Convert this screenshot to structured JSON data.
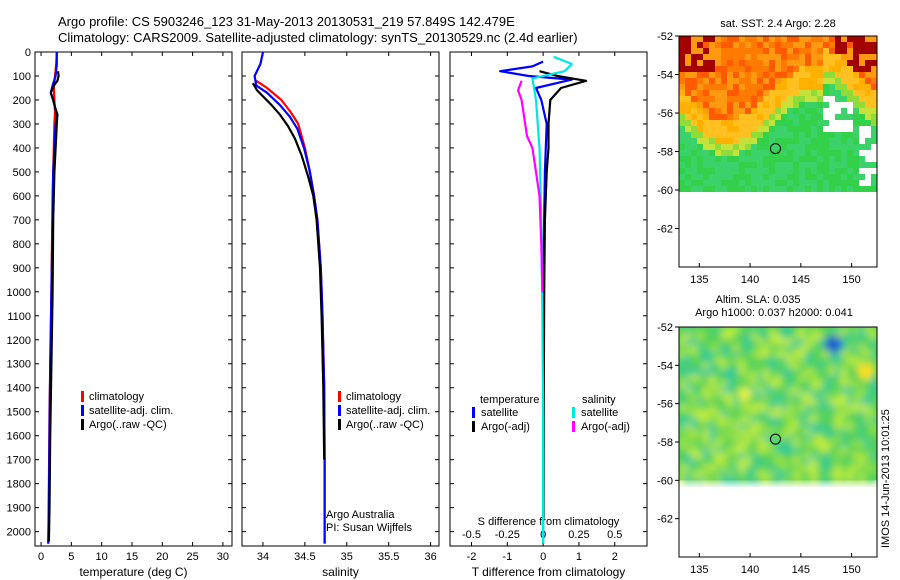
{
  "header": {
    "line1": "Argo profile: CS 5903246_123 31-May-2013 20130531_219 57.849S 142.479E",
    "line2": "Climatology: CARS2009. Satellite-adjusted climatology: synTS_20130529.nc (2.4d earlier)"
  },
  "colors": {
    "climatology": "#ff0000",
    "satellite": "#0000ff",
    "argo": "#000000",
    "sal_satellite": "#00e5e5",
    "sal_argo": "#ff00ff"
  },
  "chart_data": [
    {
      "type": "line",
      "xlabel": "temperature (deg C)",
      "xlim": [
        -1,
        31.5
      ],
      "xticks": [
        0,
        5,
        10,
        15,
        20,
        25,
        30
      ],
      "ylim": [
        2060,
        0
      ],
      "yticks": [
        0,
        100,
        200,
        300,
        400,
        500,
        600,
        700,
        800,
        900,
        1000,
        1100,
        1200,
        1300,
        1400,
        1500,
        1600,
        1700,
        1800,
        1900,
        2000
      ],
      "legend": [
        "climatology",
        "satellite-adj. clim.",
        "Argo(..raw -QC)"
      ],
      "legend_position": "bottom-right",
      "series": [
        {
          "name": "climatology",
          "color": "#ff0000",
          "x": [
            2.6,
            2.5,
            2.3,
            2.1,
            2.2,
            2.3,
            2.2,
            2.1,
            2.0,
            1.9,
            1.8,
            1.7,
            1.6,
            1.4,
            1.3,
            1.2
          ],
          "y": [
            0,
            50,
            100,
            150,
            200,
            250,
            300,
            400,
            500,
            600,
            800,
            1000,
            1200,
            1500,
            1800,
            2050
          ]
        },
        {
          "name": "satellite-adj. clim.",
          "color": "#0000ff",
          "x": [
            2.6,
            2.6,
            2.4,
            1.9,
            1.6,
            2.0,
            2.4,
            2.6,
            2.4,
            2.2,
            2.0,
            1.9,
            1.7,
            1.5,
            1.4,
            1.3,
            1.2
          ],
          "y": [
            0,
            50,
            100,
            140,
            170,
            200,
            240,
            270,
            300,
            400,
            500,
            700,
            1000,
            1300,
            1600,
            1900,
            2050
          ]
        },
        {
          "name": "Argo(..raw -QC)",
          "color": "#000000",
          "x": [
            2.8,
            2.9,
            2.7,
            2.1,
            1.6,
            2.0,
            2.3,
            2.7,
            2.6,
            2.4,
            2.2,
            2.0,
            1.9,
            1.7,
            1.5,
            1.4,
            1.3
          ],
          "y": [
            80,
            100,
            120,
            140,
            170,
            200,
            230,
            260,
            300,
            400,
            500,
            700,
            1000,
            1300,
            1600,
            1900,
            2040
          ]
        }
      ]
    },
    {
      "type": "line",
      "xlabel": "salinity",
      "xlim": [
        33.75,
        36.1
      ],
      "xticks": [
        34,
        34.5,
        35,
        35.5,
        36
      ],
      "ylim": [
        2060,
        0
      ],
      "legend": [
        "climatology",
        "satellite-adj. clim.",
        "Argo(..raw -QC)"
      ],
      "legend_position": "bottom-right",
      "annotation": [
        "Argo Australia",
        "PI: Susan Wijffels"
      ],
      "series": [
        {
          "name": "climatology",
          "color": "#ff0000",
          "x": [
            33.92,
            34.05,
            34.22,
            34.33,
            34.42,
            34.5,
            34.56,
            34.61,
            34.65,
            34.69,
            34.71,
            34.73,
            34.735,
            34.735
          ],
          "y": [
            120,
            150,
            200,
            250,
            300,
            400,
            500,
            600,
            700,
            900,
            1100,
            1400,
            1700,
            2050
          ]
        },
        {
          "name": "satellite-adj. clim.",
          "color": "#0000ff",
          "x": [
            34.0,
            33.97,
            33.9,
            33.92,
            34.05,
            34.2,
            34.32,
            34.41,
            34.49,
            34.56,
            34.61,
            34.65,
            34.69,
            34.71,
            34.73,
            34.735,
            34.735
          ],
          "y": [
            0,
            50,
            100,
            140,
            170,
            220,
            270,
            320,
            400,
            500,
            600,
            700,
            900,
            1100,
            1400,
            1700,
            2050
          ]
        },
        {
          "name": "Argo(..raw -QC)",
          "color": "#000000",
          "x": [
            33.88,
            33.93,
            34.1,
            34.2,
            34.3,
            34.38,
            34.46,
            34.54,
            34.6,
            34.64,
            34.68,
            34.7,
            34.72,
            34.73
          ],
          "y": [
            130,
            160,
            220,
            260,
            310,
            360,
            430,
            520,
            600,
            700,
            900,
            1100,
            1400,
            1700
          ]
        }
      ]
    },
    {
      "type": "line",
      "xlabel": "T difference from climatology",
      "x2label": "S difference from climatology",
      "xlim": [
        -2.6,
        2.9
      ],
      "xticks": [
        -2,
        -1,
        0,
        1,
        2
      ],
      "x2ticks": [
        "-0.5",
        "-0.25",
        "0",
        "0.25",
        "0.5"
      ],
      "x2tick_values": [
        -2,
        -1,
        0,
        1,
        2
      ],
      "ylim": [
        2060,
        0
      ],
      "legend_groups": [
        {
          "title": "temperature",
          "entries": [
            "satellite",
            "Argo(-adj)"
          ]
        },
        {
          "title": "salinity",
          "entries": [
            "satellite",
            "Argo(-adj)"
          ]
        }
      ],
      "series": [
        {
          "name": "satellite",
          "group": "temperature",
          "color": "#0000ff",
          "x": [
            0,
            -0.3,
            -1.2,
            -0.4,
            0.8,
            -0.2,
            -0.05,
            0.1,
            0.05,
            0.02,
            0,
            0
          ],
          "y": [
            40,
            60,
            80,
            100,
            115,
            150,
            200,
            300,
            500,
            800,
            1200,
            2050
          ]
        },
        {
          "name": "Argo(-adj)",
          "group": "temperature",
          "color": "#000000",
          "x": [
            -0.1,
            0.4,
            1.2,
            0.5,
            0.2,
            0.15,
            0.15,
            0.1,
            0.05,
            0.03,
            0.02,
            0.01
          ],
          "y": [
            80,
            100,
            120,
            150,
            200,
            300,
            400,
            500,
            700,
            1000,
            1400,
            1950
          ]
        },
        {
          "name": "satellite",
          "group": "salinity",
          "color": "#00e5e5",
          "x": [
            0.3,
            0.8,
            0.6,
            -0.3,
            -0.2,
            -0.1,
            -0.05,
            -0.02,
            0,
            0
          ],
          "y": [
            20,
            50,
            80,
            110,
            200,
            400,
            700,
            1100,
            1500,
            2050
          ]
        },
        {
          "name": "Argo(-adj)",
          "group": "salinity",
          "color": "#ff00ff",
          "x": [
            -0.6,
            -0.7,
            -0.6,
            -0.5,
            -0.45,
            -0.3,
            -0.2,
            -0.1,
            -0.05,
            -0.02
          ],
          "y": [
            120,
            160,
            200,
            300,
            350,
            400,
            500,
            600,
            800,
            1000
          ]
        }
      ]
    },
    {
      "type": "heatmap",
      "title": "sat. SST: 2.4  Argo: 2.28",
      "xlim": [
        133,
        152.5
      ],
      "ylim": [
        -64,
        -52
      ],
      "xticks": [
        135,
        140,
        145,
        150
      ],
      "yticks": [
        -52,
        -54,
        -56,
        -58,
        -60,
        -62
      ],
      "marker": {
        "lon": 142.5,
        "lat": -57.85
      }
    },
    {
      "type": "heatmap",
      "title": "Altim. SLA: 0.035",
      "subtitle": "Argo h1000: 0.037 h2000: 0.041",
      "xlim": [
        133,
        152.5
      ],
      "ylim": [
        -64,
        -52
      ],
      "xticks": [
        135,
        140,
        145,
        150
      ],
      "yticks": [
        -52,
        -54,
        -56,
        -58,
        -60,
        -62
      ],
      "marker": {
        "lon": 142.5,
        "lat": -57.85
      }
    }
  ],
  "footer": {
    "side_text": "IMOS 14-Jun-2013 10:01:25"
  }
}
